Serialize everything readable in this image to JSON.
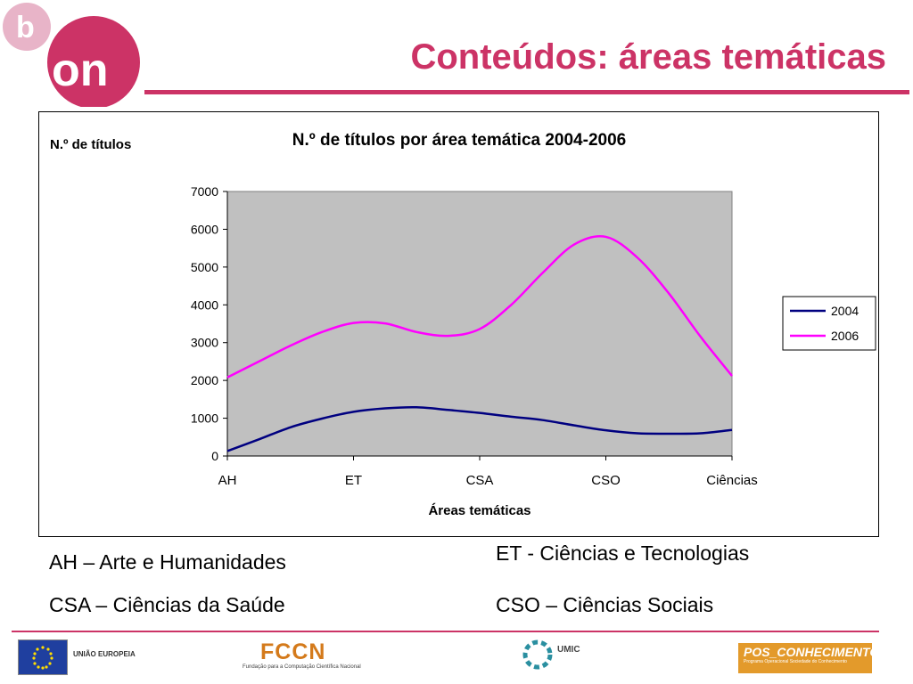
{
  "slide": {
    "title": "Conteúdos: áreas temáticas",
    "brand": {
      "logo_letters": [
        "b",
        "on"
      ],
      "accent_color": "#cc3366"
    }
  },
  "chart_data": {
    "type": "line",
    "title": "N.º de títulos por área temática 2004-2006",
    "ylabel": "N.º de títulos",
    "xlabel": "Áreas temáticas",
    "categories": [
      "AH",
      "ET",
      "CSA",
      "CSO",
      "Ciências"
    ],
    "ylim": [
      0,
      7000
    ],
    "yticks": [
      0,
      1000,
      2000,
      3000,
      4000,
      5000,
      6000,
      7000
    ],
    "grid": false,
    "plot_background": "#c0c0c0",
    "legend_position": "right",
    "series": [
      {
        "name": "2004",
        "color": "#000080",
        "x": [
          0,
          0.25,
          0.5,
          0.75,
          1,
          1.25,
          1.5,
          1.75,
          2,
          2.25,
          2.5,
          2.75,
          3,
          3.25,
          3.5,
          3.75,
          4
        ],
        "values": [
          130,
          440,
          760,
          990,
          1170,
          1260,
          1290,
          1220,
          1140,
          1040,
          950,
          810,
          680,
          600,
          590,
          600,
          690
        ]
      },
      {
        "name": "2006",
        "color": "#ff00ff",
        "x": [
          0,
          0.25,
          0.5,
          0.75,
          1,
          1.25,
          1.5,
          1.75,
          2,
          2.25,
          2.5,
          2.75,
          3,
          3.25,
          3.5,
          3.75,
          4
        ],
        "values": [
          2080,
          2500,
          2920,
          3280,
          3520,
          3510,
          3280,
          3180,
          3360,
          4000,
          4850,
          5600,
          5800,
          5250,
          4300,
          3160,
          2120
        ]
      }
    ]
  },
  "legend_notes": [
    "AH – Arte e Humanidades",
    "ET - Ciências e Tecnologias",
    "CSA – Ciências da Saúde",
    "CSO – Ciências Sociais"
  ],
  "footer": {
    "eu_label": "UNIÃO EUROPEIA",
    "fccn_label": "FCCN",
    "fccn_sub": "Fundação para a Computação Científica Nacional",
    "umic_label": "UMIC",
    "pos_label": "POS_CONHECIMENTO",
    "pos_sub": "Programa Operacional Sociedade do Conhecimento"
  }
}
